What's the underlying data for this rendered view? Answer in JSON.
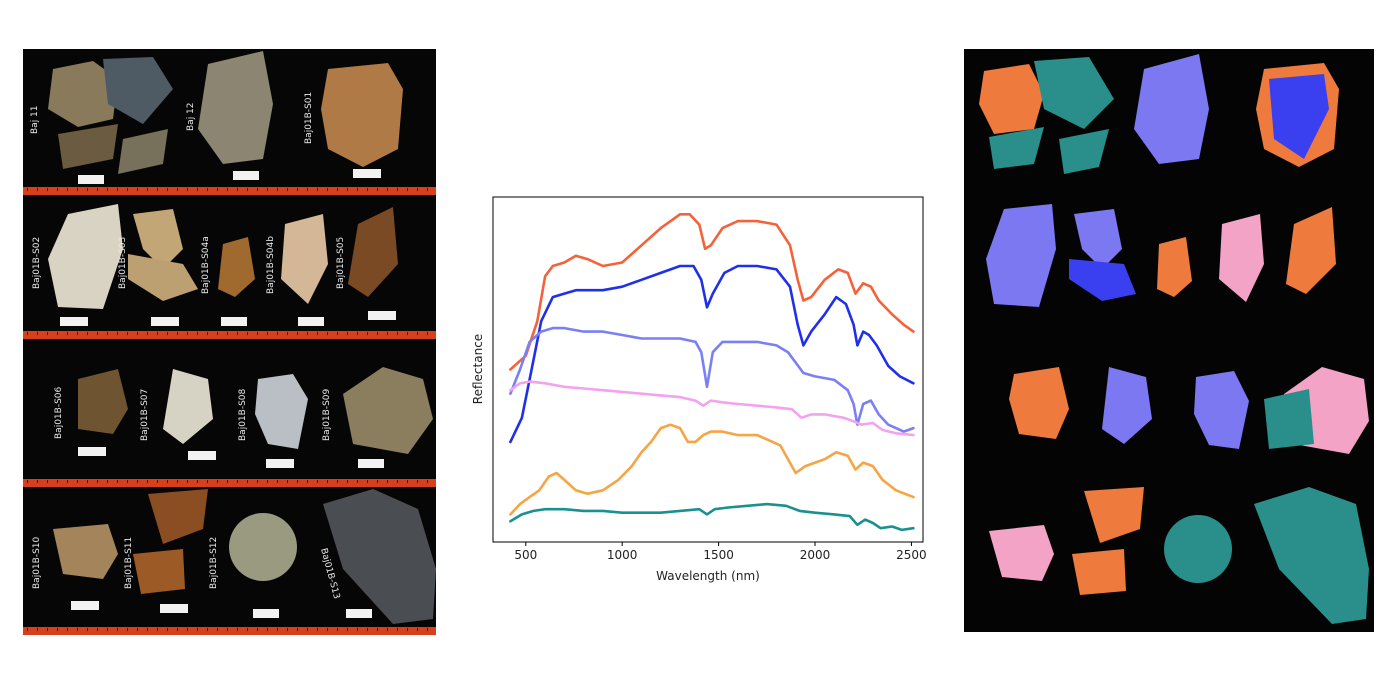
{
  "left_panel": {
    "sample_labels": [
      "Baj 11",
      "Baj 12",
      "Baj01B-S01",
      "Baj01B-S02",
      "Baj01B-S03",
      "Baj01B-S04a",
      "Baj01B-S04b",
      "Baj01B-S05",
      "Baj01B-S06",
      "Baj01B-S07",
      "Baj01B-S08",
      "Baj01B-S09",
      "Baj01B-S10",
      "Baj01B-S11",
      "Baj01B-S12",
      "Baj01B-S13"
    ],
    "colors": {
      "background": "#060606",
      "ruler": "#d6401c",
      "label_text": "#e8e8e8"
    }
  },
  "right_panel": {
    "colors": {
      "background": "#040404",
      "teal": "#2a8f8a",
      "orange": "#ee7a3e",
      "violet": "#7b78f2",
      "pink": "#f2a3c6",
      "blue": "#3a3ff0"
    }
  },
  "chart_data": {
    "type": "line",
    "title": "",
    "xlabel": "Wavelength (nm)",
    "ylabel": "Reflectance",
    "xlim": [
      330,
      2560
    ],
    "ylim": [
      0,
      1
    ],
    "xticks": [
      500,
      1000,
      1500,
      2000,
      2500
    ],
    "grid": false,
    "legend": "none",
    "series": [
      {
        "color": "#f4623a",
        "points": [
          [
            420,
            0.5
          ],
          [
            500,
            0.54
          ],
          [
            560,
            0.64
          ],
          [
            600,
            0.77
          ],
          [
            640,
            0.8
          ],
          [
            700,
            0.81
          ],
          [
            760,
            0.83
          ],
          [
            820,
            0.82
          ],
          [
            900,
            0.8
          ],
          [
            1000,
            0.81
          ],
          [
            1100,
            0.86
          ],
          [
            1200,
            0.91
          ],
          [
            1300,
            0.95
          ],
          [
            1350,
            0.95
          ],
          [
            1400,
            0.92
          ],
          [
            1430,
            0.85
          ],
          [
            1460,
            0.86
          ],
          [
            1520,
            0.91
          ],
          [
            1600,
            0.93
          ],
          [
            1700,
            0.93
          ],
          [
            1800,
            0.92
          ],
          [
            1870,
            0.86
          ],
          [
            1910,
            0.76
          ],
          [
            1940,
            0.7
          ],
          [
            1980,
            0.71
          ],
          [
            2050,
            0.76
          ],
          [
            2120,
            0.79
          ],
          [
            2170,
            0.78
          ],
          [
            2210,
            0.72
          ],
          [
            2250,
            0.75
          ],
          [
            2290,
            0.74
          ],
          [
            2330,
            0.7
          ],
          [
            2400,
            0.66
          ],
          [
            2460,
            0.63
          ],
          [
            2510,
            0.61
          ]
        ]
      },
      {
        "color": "#2030e8",
        "points": [
          [
            420,
            0.29
          ],
          [
            480,
            0.36
          ],
          [
            530,
            0.5
          ],
          [
            580,
            0.64
          ],
          [
            640,
            0.71
          ],
          [
            700,
            0.72
          ],
          [
            760,
            0.73
          ],
          [
            820,
            0.73
          ],
          [
            900,
            0.73
          ],
          [
            1000,
            0.74
          ],
          [
            1100,
            0.76
          ],
          [
            1200,
            0.78
          ],
          [
            1300,
            0.8
          ],
          [
            1370,
            0.8
          ],
          [
            1410,
            0.76
          ],
          [
            1440,
            0.68
          ],
          [
            1470,
            0.72
          ],
          [
            1530,
            0.78
          ],
          [
            1600,
            0.8
          ],
          [
            1700,
            0.8
          ],
          [
            1800,
            0.79
          ],
          [
            1870,
            0.74
          ],
          [
            1910,
            0.63
          ],
          [
            1940,
            0.57
          ],
          [
            1980,
            0.61
          ],
          [
            2050,
            0.66
          ],
          [
            2110,
            0.71
          ],
          [
            2160,
            0.69
          ],
          [
            2200,
            0.63
          ],
          [
            2220,
            0.57
          ],
          [
            2250,
            0.61
          ],
          [
            2280,
            0.6
          ],
          [
            2320,
            0.57
          ],
          [
            2380,
            0.51
          ],
          [
            2440,
            0.48
          ],
          [
            2510,
            0.46
          ]
        ]
      },
      {
        "color": "#7a80f4",
        "points": [
          [
            420,
            0.43
          ],
          [
            470,
            0.5
          ],
          [
            520,
            0.58
          ],
          [
            580,
            0.61
          ],
          [
            640,
            0.62
          ],
          [
            700,
            0.62
          ],
          [
            800,
            0.61
          ],
          [
            900,
            0.61
          ],
          [
            1000,
            0.6
          ],
          [
            1100,
            0.59
          ],
          [
            1200,
            0.59
          ],
          [
            1300,
            0.59
          ],
          [
            1380,
            0.58
          ],
          [
            1410,
            0.55
          ],
          [
            1440,
            0.45
          ],
          [
            1470,
            0.55
          ],
          [
            1520,
            0.58
          ],
          [
            1600,
            0.58
          ],
          [
            1700,
            0.58
          ],
          [
            1800,
            0.57
          ],
          [
            1860,
            0.55
          ],
          [
            1900,
            0.52
          ],
          [
            1940,
            0.49
          ],
          [
            2000,
            0.48
          ],
          [
            2100,
            0.47
          ],
          [
            2170,
            0.44
          ],
          [
            2200,
            0.4
          ],
          [
            2220,
            0.34
          ],
          [
            2250,
            0.4
          ],
          [
            2290,
            0.41
          ],
          [
            2330,
            0.37
          ],
          [
            2380,
            0.34
          ],
          [
            2420,
            0.33
          ],
          [
            2460,
            0.32
          ],
          [
            2510,
            0.33
          ]
        ]
      },
      {
        "color": "#f3a3ee",
        "points": [
          [
            420,
            0.44
          ],
          [
            470,
            0.46
          ],
          [
            520,
            0.465
          ],
          [
            600,
            0.46
          ],
          [
            700,
            0.45
          ],
          [
            800,
            0.445
          ],
          [
            900,
            0.44
          ],
          [
            1000,
            0.435
          ],
          [
            1100,
            0.43
          ],
          [
            1200,
            0.425
          ],
          [
            1300,
            0.42
          ],
          [
            1380,
            0.41
          ],
          [
            1420,
            0.395
          ],
          [
            1460,
            0.41
          ],
          [
            1520,
            0.405
          ],
          [
            1600,
            0.4
          ],
          [
            1700,
            0.395
          ],
          [
            1800,
            0.39
          ],
          [
            1880,
            0.385
          ],
          [
            1930,
            0.36
          ],
          [
            1980,
            0.37
          ],
          [
            2050,
            0.37
          ],
          [
            2150,
            0.36
          ],
          [
            2200,
            0.35
          ],
          [
            2240,
            0.34
          ],
          [
            2300,
            0.345
          ],
          [
            2350,
            0.325
          ],
          [
            2420,
            0.315
          ],
          [
            2510,
            0.31
          ]
        ]
      },
      {
        "color": "#f7a444",
        "points": [
          [
            420,
            0.08
          ],
          [
            470,
            0.11
          ],
          [
            520,
            0.13
          ],
          [
            570,
            0.15
          ],
          [
            620,
            0.19
          ],
          [
            660,
            0.2
          ],
          [
            700,
            0.18
          ],
          [
            760,
            0.15
          ],
          [
            820,
            0.14
          ],
          [
            900,
            0.15
          ],
          [
            980,
            0.18
          ],
          [
            1050,
            0.22
          ],
          [
            1100,
            0.26
          ],
          [
            1150,
            0.29
          ],
          [
            1200,
            0.33
          ],
          [
            1250,
            0.34
          ],
          [
            1300,
            0.33
          ],
          [
            1340,
            0.29
          ],
          [
            1380,
            0.29
          ],
          [
            1420,
            0.31
          ],
          [
            1460,
            0.32
          ],
          [
            1520,
            0.32
          ],
          [
            1600,
            0.31
          ],
          [
            1700,
            0.31
          ],
          [
            1780,
            0.29
          ],
          [
            1820,
            0.28
          ],
          [
            1860,
            0.24
          ],
          [
            1900,
            0.2
          ],
          [
            1950,
            0.22
          ],
          [
            2050,
            0.24
          ],
          [
            2110,
            0.26
          ],
          [
            2170,
            0.25
          ],
          [
            2210,
            0.21
          ],
          [
            2250,
            0.23
          ],
          [
            2300,
            0.22
          ],
          [
            2350,
            0.18
          ],
          [
            2420,
            0.15
          ],
          [
            2510,
            0.13
          ]
        ]
      },
      {
        "color": "#1a9090",
        "points": [
          [
            420,
            0.06
          ],
          [
            480,
            0.08
          ],
          [
            540,
            0.09
          ],
          [
            600,
            0.095
          ],
          [
            700,
            0.095
          ],
          [
            800,
            0.09
          ],
          [
            900,
            0.09
          ],
          [
            1000,
            0.085
          ],
          [
            1100,
            0.085
          ],
          [
            1200,
            0.085
          ],
          [
            1300,
            0.09
          ],
          [
            1400,
            0.095
          ],
          [
            1440,
            0.08
          ],
          [
            1480,
            0.095
          ],
          [
            1550,
            0.1
          ],
          [
            1650,
            0.105
          ],
          [
            1750,
            0.11
          ],
          [
            1850,
            0.105
          ],
          [
            1920,
            0.09
          ],
          [
            2000,
            0.085
          ],
          [
            2100,
            0.08
          ],
          [
            2180,
            0.075
          ],
          [
            2220,
            0.05
          ],
          [
            2260,
            0.065
          ],
          [
            2300,
            0.055
          ],
          [
            2340,
            0.04
          ],
          [
            2400,
            0.045
          ],
          [
            2450,
            0.035
          ],
          [
            2510,
            0.04
          ]
        ]
      }
    ]
  }
}
